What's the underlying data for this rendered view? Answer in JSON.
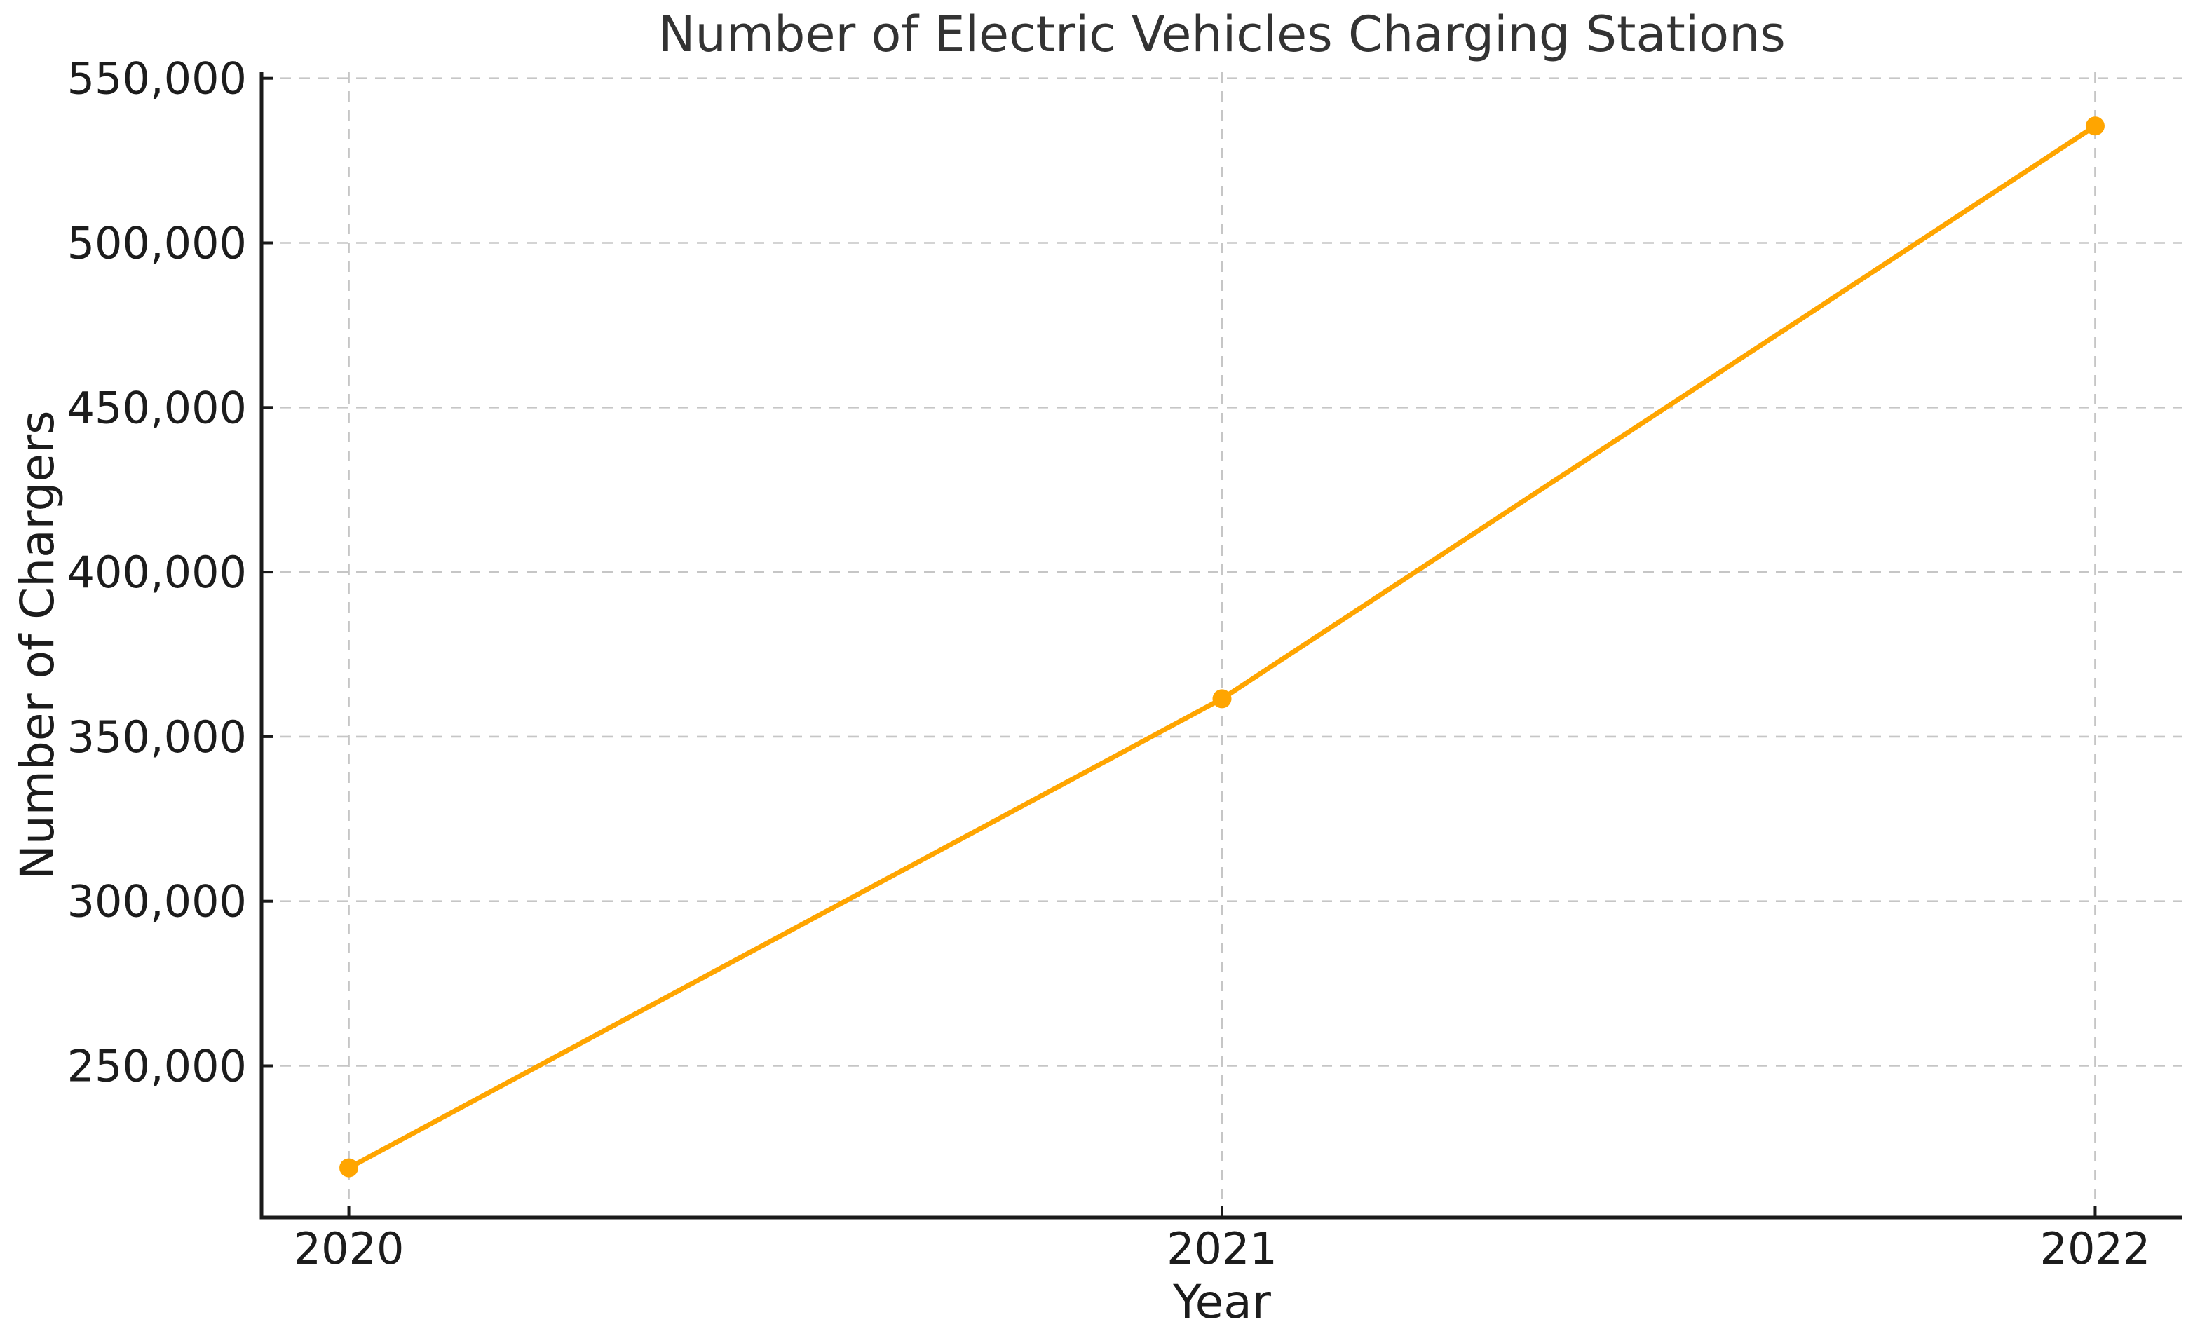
{
  "figure": {
    "background": "#ffffff"
  },
  "chart_data": {
    "type": "line",
    "title": "Number of Electric Vehicles Charging Stations",
    "xlabel": "Year",
    "ylabel": "Number of Chargers",
    "x": [
      2020,
      2021,
      2022
    ],
    "series": [
      {
        "name": "chargers",
        "values": [
          219000,
          361500,
          535500
        ],
        "color": "#FFA500",
        "marker": "circle"
      }
    ],
    "xticks": {
      "values": [
        2020,
        2021,
        2022
      ],
      "labels": [
        "2020",
        "2021",
        "2022"
      ]
    },
    "yticks": {
      "values": [
        250000,
        300000,
        350000,
        400000,
        450000,
        500000,
        550000
      ],
      "labels": [
        "250,000",
        "300,000",
        "350,000",
        "400,000",
        "450,000",
        "500,000",
        "550,000"
      ]
    },
    "xlim": [
      2019.9,
      2022.1
    ],
    "ylim": [
      203900,
      551850
    ],
    "legend": "none",
    "grid": {
      "visible": true,
      "style": "dashed",
      "color": "#c6c6c6"
    },
    "colors": {
      "line": "#FFA500",
      "spine": "#1a1a1a",
      "tick_text": "#1c1c1c",
      "title_text": "#333333",
      "grid": "#c6c6c6"
    }
  }
}
